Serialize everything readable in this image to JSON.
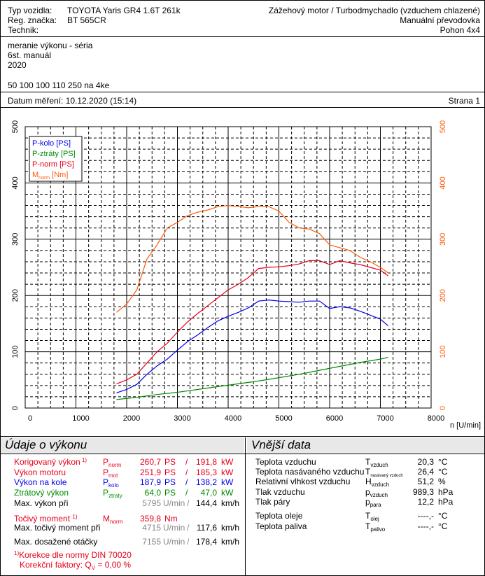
{
  "header": {
    "typ_label": "Typ vozidla:",
    "typ_value": "TOYOTA Yaris GR4 1.6T 261k",
    "reg_label": "Reg. značka:",
    "reg_value": "BT 565CR",
    "tech_label": "Technik:",
    "engine": "Zážehový motor / Turbodmychadlo (vzduchem chlazené)",
    "gearbox": "Manuální převodovka",
    "drive": "Pohon 4x4"
  },
  "notes": {
    "line1": "meranie výkonu - séria",
    "line2": "6st. manuál",
    "line3": "2020",
    "line4": "50 100 100 110 250 na 4ke"
  },
  "measurement": {
    "date_text": "Datum měření: 10.12.2020 (15:14)",
    "page_text": "Strana 1"
  },
  "chart_data": {
    "type": "line",
    "xlabel": "n [U/min]",
    "xlim": [
      0,
      8000
    ],
    "x_ticks": [
      "0",
      "1000",
      "2000",
      "3000",
      "4000",
      "5000",
      "6000",
      "7000",
      "8000"
    ],
    "ylim_left": [
      0,
      500
    ],
    "ylim_right": [
      0,
      500
    ],
    "y_ticks_left": [
      "0",
      "100",
      "200",
      "300",
      "400",
      "500"
    ],
    "y_ticks_right": [
      "0",
      "100",
      "200",
      "300",
      "400",
      "500"
    ],
    "grid": true,
    "legend_position": "top-left",
    "legend": [
      {
        "label": "P-kolo [PS]",
        "color": "#0000ee"
      },
      {
        "label": "P-ztráty [PS]",
        "color": "#008a00"
      },
      {
        "label": "P-norm [PS]",
        "color": "#e8001c"
      },
      {
        "label": "M",
        "sub": "norm",
        "suffix": " [Nm]",
        "color": "#ff5a0a"
      }
    ],
    "series": [
      {
        "name": "P-kolo [PS]",
        "color": "#0000ee",
        "x": [
          1800,
          2000,
          2200,
          2400,
          2600,
          2800,
          3000,
          3200,
          3400,
          3600,
          3800,
          4000,
          4200,
          4400,
          4600,
          4800,
          5000,
          5200,
          5400,
          5600,
          5800,
          6000,
          6200,
          6400,
          6600,
          6800,
          7000,
          7155
        ],
        "y": [
          27,
          33,
          42,
          60,
          75,
          87,
          103,
          118,
          130,
          143,
          155,
          163,
          170,
          178,
          190,
          192,
          190,
          189,
          188,
          190,
          190,
          177,
          180,
          178,
          172,
          165,
          158,
          146
        ]
      },
      {
        "name": "P-ztráty [PS]",
        "color": "#008a00",
        "x": [
          1800,
          2200,
          2600,
          3000,
          3400,
          3800,
          4200,
          4600,
          5000,
          5400,
          5800,
          6200,
          6600,
          7000,
          7155
        ],
        "y": [
          15,
          19,
          24,
          28,
          33,
          38,
          43,
          48,
          54,
          60,
          67,
          74,
          81,
          87,
          90
        ]
      },
      {
        "name": "P-norm [PS]",
        "color": "#e8001c",
        "x": [
          1800,
          2000,
          2200,
          2400,
          2600,
          2800,
          3000,
          3200,
          3400,
          3600,
          3800,
          4000,
          4200,
          4400,
          4600,
          4800,
          5000,
          5200,
          5400,
          5600,
          5800,
          6000,
          6200,
          6400,
          6600,
          6800,
          7000,
          7155
        ],
        "y": [
          43,
          50,
          60,
          80,
          100,
          115,
          135,
          153,
          168,
          182,
          196,
          210,
          220,
          232,
          248,
          250,
          251,
          253,
          256,
          262,
          262,
          255,
          262,
          258,
          255,
          250,
          245,
          235
        ]
      },
      {
        "name": "M",
        "color": "#ff5a0a",
        "x": [
          1800,
          2000,
          2200,
          2400,
          2600,
          2800,
          3000,
          3200,
          3400,
          3600,
          3800,
          4000,
          4200,
          4400,
          4600,
          4800,
          5000,
          5200,
          5400,
          5600,
          5800,
          6000,
          6200,
          6400,
          6600,
          6800,
          7000,
          7155
        ],
        "y": [
          170,
          185,
          210,
          265,
          290,
          320,
          330,
          342,
          348,
          352,
          358,
          360,
          358,
          356,
          358,
          358,
          350,
          330,
          320,
          318,
          310,
          290,
          285,
          280,
          268,
          260,
          250,
          240
        ]
      }
    ]
  },
  "performance": {
    "title": "Údaje o výkonu",
    "rows": [
      {
        "label": "Korigovaný výkon",
        "note": "1)",
        "sym": "P",
        "sub": "norm",
        "v1": "260,7",
        "u1": "PS",
        "sep": "/",
        "v2": "191,8",
        "u2": "kW",
        "color": "red"
      },
      {
        "label": "Výkon motoru",
        "note": "",
        "sym": "P",
        "sub": "mot",
        "v1": "251,9",
        "u1": "PS",
        "sep": "/",
        "v2": "185,3",
        "u2": "kW",
        "color": "red"
      },
      {
        "label": "Výkon na kole",
        "note": "",
        "sym": "P",
        "sub": "kolo",
        "v1": "187,9",
        "u1": "PS",
        "sep": "/",
        "v2": "138,2",
        "u2": "kW",
        "color": "blue"
      },
      {
        "label": "Ztrátový výkon",
        "note": "",
        "sym": "P",
        "sub": "ztraty",
        "v1": "64,0",
        "u1": "PS",
        "sep": "/",
        "v2": "47,0",
        "u2": "kW",
        "color": "green"
      }
    ],
    "max_power_label": "Max. výkon při",
    "max_power_rpm": "5795",
    "rpm_unit": "U/min",
    "max_power_speed": "144,4",
    "speed_unit": "km/h",
    "torque_label": "Točivý moment",
    "torque_note": "1)",
    "torque_sym": "M",
    "torque_sub": "norm",
    "torque_value": "359,8",
    "torque_unit": "Nm",
    "max_torque_label": "Max. točivý moment při",
    "max_torque_rpm": "4715",
    "max_torque_speed": "117,6",
    "max_rpm_label": "Max. dosažené otáčky",
    "max_rpm_value": "7155",
    "max_rpm_speed": "178,4",
    "footnote_marker": "1)",
    "footnote": "Korekce dle normy DIN 70020",
    "factor_label": "Korekční faktory: Q",
    "factor_sub": "V",
    "factor_value": " =    0,00 %"
  },
  "external": {
    "title": "Vnější data",
    "rows": [
      {
        "label": "Teplota vzduchu",
        "sym": "T",
        "sub": "vzduch",
        "value": "20,3",
        "unit": "°C"
      },
      {
        "label": "Teplota nasávaného vzduchu",
        "sym": "T",
        "sub": "nasávaný vzduch",
        "value": "26,4",
        "unit": "°C"
      },
      {
        "label": "Relativní vlhkost vzduchu",
        "sym": "H",
        "sub": "vzduch",
        "value": "51,2",
        "unit": "%"
      },
      {
        "label": "Tlak vzduchu",
        "sym": "p",
        "sub": "vzduch",
        "value": "989,3",
        "unit": "hPa"
      },
      {
        "label": "Tlak páry",
        "sym": "p",
        "sub": "para",
        "value": "12,2",
        "unit": "hPa"
      },
      {
        "label": "Teplota oleje",
        "sym": "T",
        "sub": "olej",
        "value": "----,-",
        "unit": "°C"
      },
      {
        "label": "Teplota paliva",
        "sym": "T",
        "sub": "palivo",
        "value": "----,-",
        "unit": "°C"
      }
    ]
  }
}
